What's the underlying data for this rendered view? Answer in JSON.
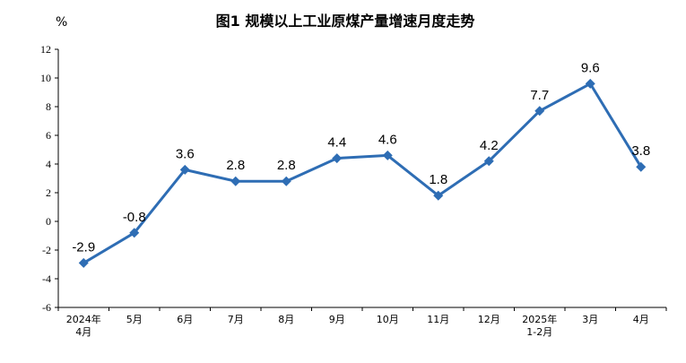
{
  "chart_data": {
    "type": "line",
    "title": "图1  规模以上工业原煤产量增速月度走势",
    "unit_label": "%",
    "categories": [
      [
        "2024年",
        "4月"
      ],
      [
        "5月"
      ],
      [
        "6月"
      ],
      [
        "7月"
      ],
      [
        "8月"
      ],
      [
        "9月"
      ],
      [
        "10月"
      ],
      [
        "11月"
      ],
      [
        "12月"
      ],
      [
        "2025年",
        "1-2月"
      ],
      [
        "3月"
      ],
      [
        "4月"
      ]
    ],
    "values": [
      -2.9,
      -0.8,
      3.6,
      2.8,
      2.8,
      4.4,
      4.6,
      1.8,
      4.2,
      7.7,
      9.6,
      3.8
    ],
    "data_labels": [
      "-2.9",
      "-0.8",
      "3.6",
      "2.8",
      "2.8",
      "4.4",
      "4.6",
      "1.8",
      "4.2",
      "7.7",
      "9.6",
      "3.8"
    ],
    "ylim": [
      -6,
      12
    ],
    "yticks": [
      12,
      10,
      8,
      6,
      4,
      2,
      0,
      -2,
      -4,
      -6
    ],
    "grid": false,
    "legend": "none",
    "line_color": "#2E6DB4",
    "marker": "diamond"
  }
}
